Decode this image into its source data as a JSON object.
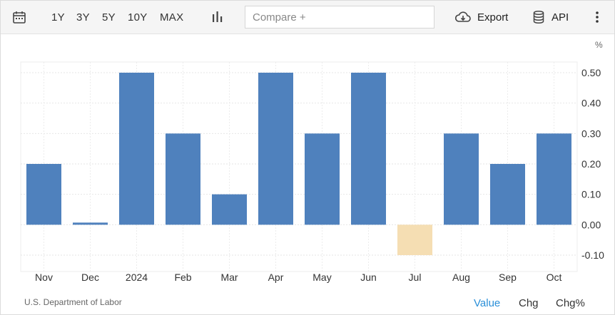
{
  "toolbar": {
    "ranges": [
      "1Y",
      "3Y",
      "5Y",
      "10Y",
      "MAX"
    ],
    "compare_placeholder": "Compare +",
    "export_label": "Export",
    "api_label": "API",
    "icons": [
      "calendar-icon",
      "bar-chart-icon",
      "cloud-download-icon",
      "database-icon",
      "more-vertical-icon"
    ]
  },
  "footer": {
    "source": "U.S. Department of Labor",
    "modes": [
      "Value",
      "Chg",
      "Chg%"
    ],
    "active_mode": "Value"
  },
  "colors": {
    "positive_bar": "#4f81bd",
    "negative_bar": "#f5deb3",
    "active_tab": "#2a8fd8"
  },
  "chart_data": {
    "type": "bar",
    "unit": "%",
    "categories": [
      "Nov",
      "Dec",
      "2024",
      "Feb",
      "Mar",
      "Apr",
      "May",
      "Jun",
      "Jul",
      "Aug",
      "Sep",
      "Oct"
    ],
    "values": [
      0.2,
      0.0,
      0.5,
      0.3,
      0.1,
      0.5,
      0.3,
      0.5,
      -0.1,
      0.3,
      0.2,
      0.3
    ],
    "yticks": [
      "0.50",
      "0.40",
      "0.30",
      "0.20",
      "0.10",
      "0.00",
      "-0.10"
    ],
    "ylim": [
      -0.1,
      0.5
    ],
    "y_axis_position": "right",
    "grid": true
  }
}
